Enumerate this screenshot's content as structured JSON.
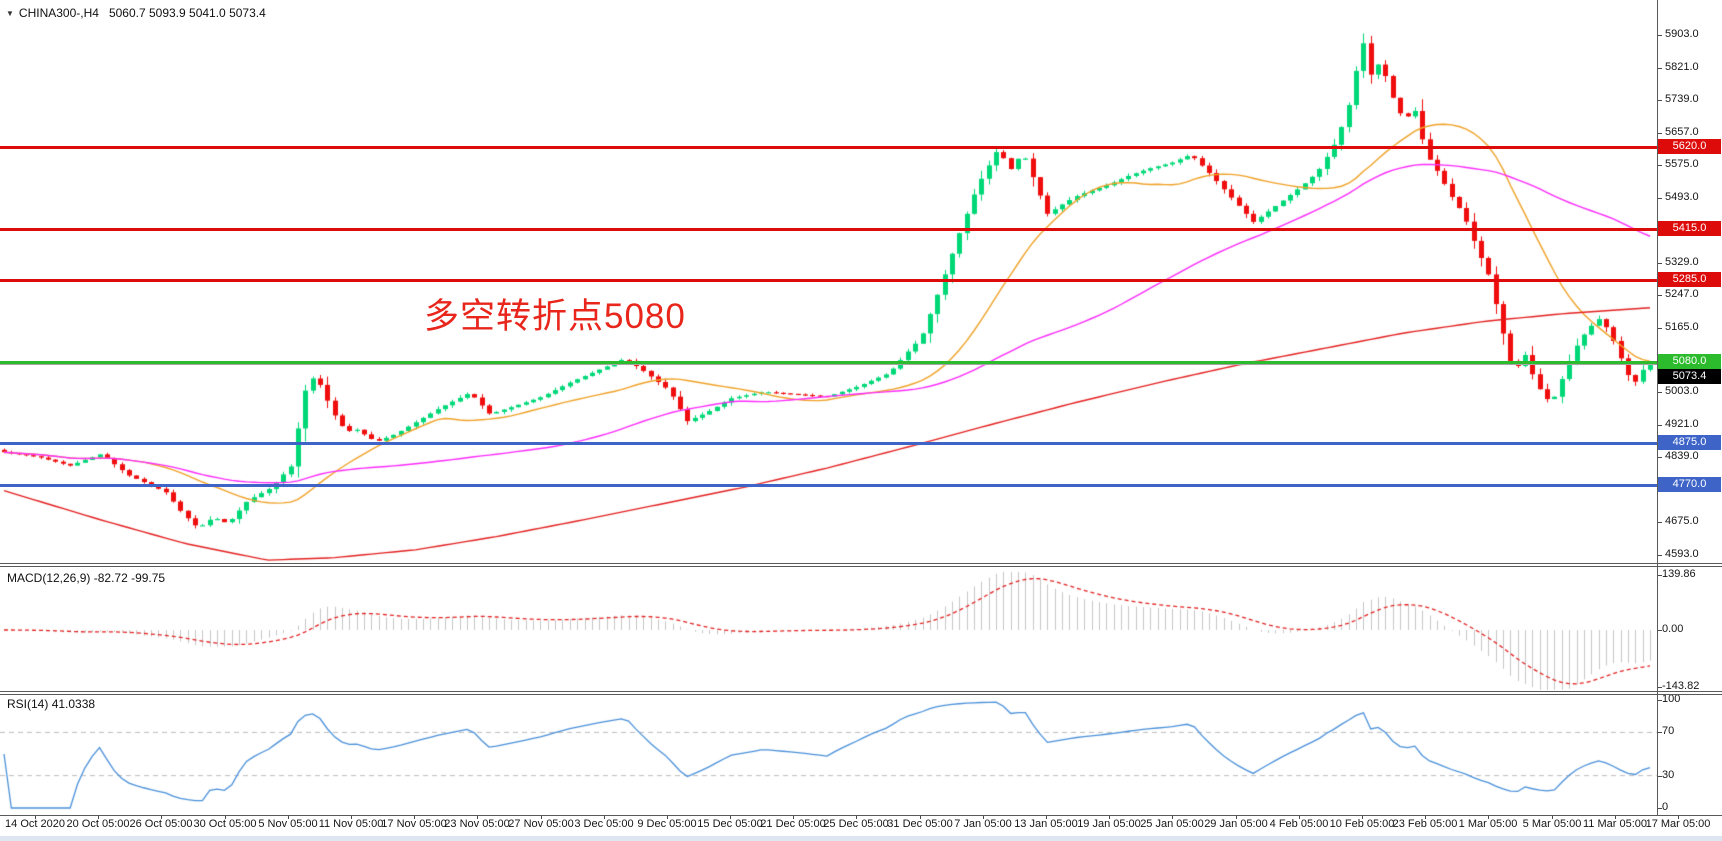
{
  "header": {
    "symbol_label": "CHINA300-,H4",
    "ohlc_text": "5060.7 5093.9 5041.0 5073.4",
    "dropdown_icon": "symbol-dropdown-icon"
  },
  "annotation": {
    "text": "多空转折点5080",
    "color": "#E8261C"
  },
  "price_axis": {
    "ticks": [
      {
        "label": "5903.0",
        "value": 5903.0
      },
      {
        "label": "5821.0",
        "value": 5821.0
      },
      {
        "label": "5739.0",
        "value": 5739.0
      },
      {
        "label": "5657.0",
        "value": 5657.0
      },
      {
        "label": "5575.0",
        "value": 5575.0
      },
      {
        "label": "5493.0",
        "value": 5493.0
      },
      {
        "label": "5411.0",
        "value": 5411.0
      },
      {
        "label": "5329.0",
        "value": 5329.0
      },
      {
        "label": "5247.0",
        "value": 5247.0
      },
      {
        "label": "5165.0",
        "value": 5165.0
      },
      {
        "label": "5083.0",
        "value": 5083.0
      },
      {
        "label": "5003.0",
        "value": 5003.0
      },
      {
        "label": "4921.0",
        "value": 4921.0
      },
      {
        "label": "4839.0",
        "value": 4839.0
      },
      {
        "label": "4757.0",
        "value": 4757.0
      },
      {
        "label": "4675.0",
        "value": 4675.0
      },
      {
        "label": "4593.0",
        "value": 4593.0
      }
    ]
  },
  "current_price": {
    "label": "5073.4",
    "value": 5073.4,
    "badge_bg": "#000000",
    "line_color": "#A6A6A6"
  },
  "time_axis": {
    "labels": [
      "14 Oct 2020",
      "20 Oct 05:00",
      "26 Oct 05:00",
      "30 Oct 05:00",
      "5 Nov 05:00",
      "11 Nov 05:00",
      "17 Nov 05:00",
      "23 Nov 05:00",
      "27 Nov 05:00",
      "3 Dec 05:00",
      "9 Dec 05:00",
      "15 Dec 05:00",
      "21 Dec 05:00",
      "25 Dec 05:00",
      "31 Dec 05:00",
      "7 Jan 05:00",
      "13 Jan 05:00",
      "19 Jan 05:00",
      "25 Jan 05:00",
      "29 Jan 05:00",
      "4 Feb 05:00",
      "10 Feb 05:00",
      "23 Feb 05:00",
      "1 Mar 05:00",
      "5 Mar 05:00",
      "11 Mar 05:00",
      "17 Mar 05:00"
    ]
  },
  "indicators": {
    "macd": {
      "name_label": "MACD(12,26,9)",
      "values_label": "-82.72 -99.75",
      "axis": [
        {
          "label": "139.86",
          "value": 139.86
        },
        {
          "label": "0.00",
          "value": 0.0
        },
        {
          "label": "-143.82",
          "value": -143.82
        }
      ]
    },
    "rsi": {
      "name_label": "RSI(14)",
      "value_label": "41.0338",
      "axis": [
        {
          "label": "100",
          "value": 100
        },
        {
          "label": "70",
          "value": 70
        },
        {
          "label": "30",
          "value": 30
        },
        {
          "label": "0",
          "value": 0
        }
      ]
    }
  },
  "chart_data": {
    "type": "candlestick",
    "symbol": "CHINA300-",
    "timeframe": "H4",
    "current_ohlc": {
      "open": 5060.7,
      "high": 5093.9,
      "low": 5041.0,
      "close": 5073.4
    },
    "visible_range": {
      "first_time_label": "14 Oct 2020",
      "last_time_label": "17 Mar 05:00",
      "price_axis_min": 4593.0,
      "price_axis_max": 5903.0
    },
    "bull_color": "#00D878",
    "bear_color": "#EF0D0D",
    "candles_n": 225,
    "close_path_anchors": [
      [
        0.0,
        4852
      ],
      [
        0.021,
        4840
      ],
      [
        0.04,
        4818
      ],
      [
        0.059,
        4848
      ],
      [
        0.075,
        4795
      ],
      [
        0.098,
        4752
      ],
      [
        0.108,
        4700
      ],
      [
        0.118,
        4660
      ],
      [
        0.127,
        4688
      ],
      [
        0.136,
        4672
      ],
      [
        0.148,
        4730
      ],
      [
        0.162,
        4762
      ],
      [
        0.175,
        4820
      ],
      [
        0.182,
        5000
      ],
      [
        0.189,
        5048
      ],
      [
        0.2,
        4950
      ],
      [
        0.208,
        4902
      ],
      [
        0.213,
        4912
      ],
      [
        0.226,
        4878
      ],
      [
        0.238,
        4898
      ],
      [
        0.251,
        4930
      ],
      [
        0.264,
        4962
      ],
      [
        0.283,
        5002
      ],
      [
        0.295,
        4948
      ],
      [
        0.31,
        4968
      ],
      [
        0.327,
        4992
      ],
      [
        0.345,
        5030
      ],
      [
        0.366,
        5068
      ],
      [
        0.377,
        5088
      ],
      [
        0.388,
        5058
      ],
      [
        0.404,
        5008
      ],
      [
        0.415,
        4930
      ],
      [
        0.427,
        4952
      ],
      [
        0.442,
        4988
      ],
      [
        0.461,
        5004
      ],
      [
        0.481,
        4998
      ],
      [
        0.5,
        4992
      ],
      [
        0.519,
        5018
      ],
      [
        0.538,
        5052
      ],
      [
        0.55,
        5110
      ],
      [
        0.557,
        5140
      ],
      [
        0.568,
        5260
      ],
      [
        0.58,
        5400
      ],
      [
        0.591,
        5520
      ],
      [
        0.596,
        5558
      ],
      [
        0.604,
        5618
      ],
      [
        0.611,
        5562
      ],
      [
        0.619,
        5608
      ],
      [
        0.627,
        5524
      ],
      [
        0.634,
        5452
      ],
      [
        0.645,
        5482
      ],
      [
        0.653,
        5500
      ],
      [
        0.672,
        5528
      ],
      [
        0.683,
        5548
      ],
      [
        0.695,
        5566
      ],
      [
        0.71,
        5582
      ],
      [
        0.721,
        5602
      ],
      [
        0.733,
        5552
      ],
      [
        0.748,
        5482
      ],
      [
        0.759,
        5432
      ],
      [
        0.771,
        5468
      ],
      [
        0.787,
        5518
      ],
      [
        0.798,
        5558
      ],
      [
        0.81,
        5640
      ],
      [
        0.819,
        5752
      ],
      [
        0.823,
        5852
      ],
      [
        0.825,
        5898
      ],
      [
        0.831,
        5792
      ],
      [
        0.836,
        5840
      ],
      [
        0.844,
        5742
      ],
      [
        0.851,
        5682
      ],
      [
        0.856,
        5730
      ],
      [
        0.864,
        5602
      ],
      [
        0.871,
        5558
      ],
      [
        0.879,
        5498
      ],
      [
        0.887,
        5448
      ],
      [
        0.894,
        5372
      ],
      [
        0.902,
        5298
      ],
      [
        0.909,
        5178
      ],
      [
        0.917,
        5052
      ],
      [
        0.924,
        5098
      ],
      [
        0.931,
        5022
      ],
      [
        0.94,
        4972
      ],
      [
        0.947,
        5042
      ],
      [
        0.954,
        5112
      ],
      [
        0.962,
        5162
      ],
      [
        0.97,
        5192
      ],
      [
        0.979,
        5122
      ],
      [
        0.985,
        5058
      ],
      [
        0.99,
        5022
      ],
      [
        0.995,
        5058
      ],
      [
        1.0,
        5073
      ]
    ],
    "horizontal_levels": [
      {
        "price": 5620.0,
        "label": "5620.0",
        "color": "#DE0B0B",
        "kind": "resistance"
      },
      {
        "price": 5415.0,
        "label": "5415.0",
        "color": "#DE0B0B",
        "kind": "resistance"
      },
      {
        "price": 5285.0,
        "label": "5285.0",
        "color": "#DE0B0B",
        "kind": "resistance"
      },
      {
        "price": 5080.0,
        "label": "5080.0",
        "color": "#2CBB2C",
        "kind": "pivot"
      },
      {
        "price": 4875.0,
        "label": "4875.0",
        "color": "#3E64C8",
        "kind": "support"
      },
      {
        "price": 4770.0,
        "label": "4770.0",
        "color": "#3E64C8",
        "kind": "support"
      }
    ],
    "moving_averages": [
      {
        "name": "fast-ma",
        "period": 20,
        "color": "#EFA228",
        "style": "solid"
      },
      {
        "name": "mid-ma",
        "period": 60,
        "color": "#FB2BFB",
        "style": "solid"
      },
      {
        "name": "slow-ma",
        "color": "#E32020",
        "style": "solid",
        "path_anchors": [
          [
            0,
            4755
          ],
          [
            0.06,
            4680
          ],
          [
            0.11,
            4622
          ],
          [
            0.16,
            4580
          ],
          [
            0.2,
            4586
          ],
          [
            0.25,
            4606
          ],
          [
            0.3,
            4640
          ],
          [
            0.35,
            4680
          ],
          [
            0.4,
            4722
          ],
          [
            0.45,
            4764
          ],
          [
            0.5,
            4812
          ],
          [
            0.55,
            4866
          ],
          [
            0.6,
            4922
          ],
          [
            0.65,
            4976
          ],
          [
            0.7,
            5026
          ],
          [
            0.75,
            5072
          ],
          [
            0.8,
            5112
          ],
          [
            0.85,
            5152
          ],
          [
            0.9,
            5182
          ],
          [
            0.95,
            5202
          ],
          [
            1.0,
            5216
          ]
        ]
      }
    ],
    "macd": {
      "fast": 12,
      "slow": 26,
      "signal_period": 9,
      "macd_value": -82.72,
      "signal_value": -99.75,
      "axis_max": 139.86,
      "axis_min": -143.82,
      "histogram_color": "#C6C6C6",
      "signal_color": "#E22222"
    },
    "rsi": {
      "period": 14,
      "value": 41.0338,
      "levels": [
        70,
        30
      ],
      "range": [
        0,
        100
      ],
      "line_color": "#4A90D9",
      "level_line_color": "#BBBBBB"
    }
  }
}
